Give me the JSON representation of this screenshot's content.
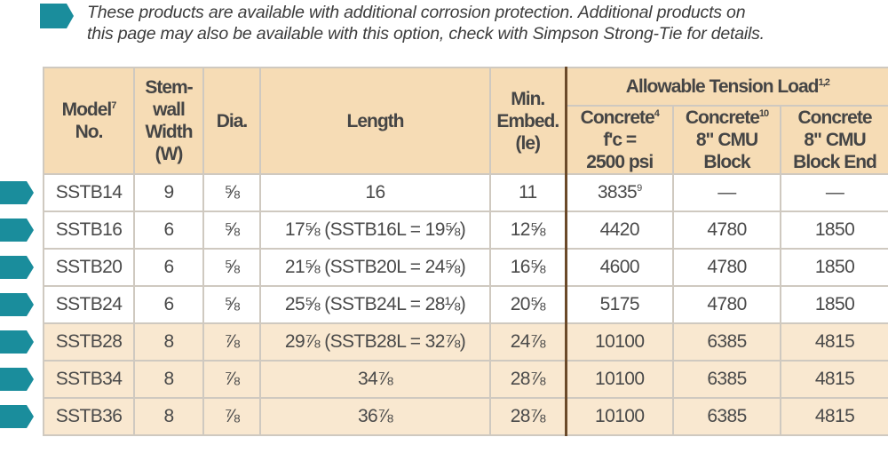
{
  "note": [
    "These products are available with additional corrosion protection. Additional products on",
    "this page may also be available with this option, check with Simpson Strong-Tie for details."
  ],
  "table": {
    "group_header": {
      "text": "Allowable Tension Load",
      "sup": "1,2"
    },
    "columns": [
      {
        "lines": [
          "Model",
          "No."
        ],
        "sup": "7"
      },
      {
        "lines": [
          "Stem-",
          "wall",
          "Width",
          "(W)"
        ]
      },
      {
        "lines": [
          "Dia."
        ]
      },
      {
        "lines": [
          "Length"
        ]
      },
      {
        "lines": [
          "Min.",
          "Embed.",
          "(le)"
        ]
      },
      {
        "lines": [
          "Concrete",
          "f'c =",
          "2500 psi"
        ],
        "sup": "4"
      },
      {
        "lines": [
          "Concrete",
          "8\" CMU",
          "Block"
        ],
        "sup": "10"
      },
      {
        "lines": [
          "Concrete",
          "8\" CMU",
          "Block End"
        ]
      }
    ],
    "rows": [
      [
        "SSTB14",
        "9",
        "⅝",
        "16",
        "11",
        {
          "text": "3835",
          "sup": "9"
        },
        "—",
        "—"
      ],
      [
        "SSTB16",
        "6",
        "⅝",
        "17⅝ (SSTB16L = 19⅝)",
        "12⅝",
        "4420",
        "4780",
        "1850"
      ],
      [
        "SSTB20",
        "6",
        "⅝",
        "21⅝ (SSTB20L = 24⅝)",
        "16⅝",
        "4600",
        "4780",
        "1850"
      ],
      [
        "SSTB24",
        "6",
        "⅝",
        "25⅝ (SSTB24L = 28⅛)",
        "20⅝",
        "5175",
        "4780",
        "1850"
      ],
      [
        "SSTB28",
        "8",
        "⅞",
        "29⅞ (SSTB28L = 32⅞)",
        "24⅞",
        "10100",
        "6385",
        "4815"
      ],
      [
        "SSTB34",
        "8",
        "⅞",
        "34⅞",
        "28⅞",
        "10100",
        "6385",
        "4815"
      ],
      [
        "SSTB36",
        "8",
        "⅞",
        "36⅞",
        "28⅞",
        "10100",
        "6385",
        "4815"
      ]
    ]
  }
}
